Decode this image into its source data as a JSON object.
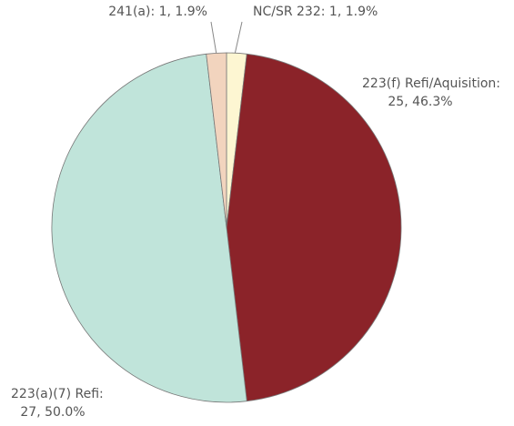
{
  "chart_data": {
    "type": "pie",
    "values": [
      1,
      25,
      27,
      1
    ],
    "colors": [
      "#fdf6d2",
      "#8b2329",
      "#c0e4da",
      "#f2d4be"
    ],
    "labels": [
      [
        "NC/SR 232: 1, 1.9%"
      ],
      [
        "223(f) Refi/Aquisition:",
        "25, 46.3%"
      ],
      [
        "223(a)(7) Refi:",
        "27, 50.0%"
      ],
      [
        "241(a): 1, 1.9%"
      ]
    ]
  }
}
